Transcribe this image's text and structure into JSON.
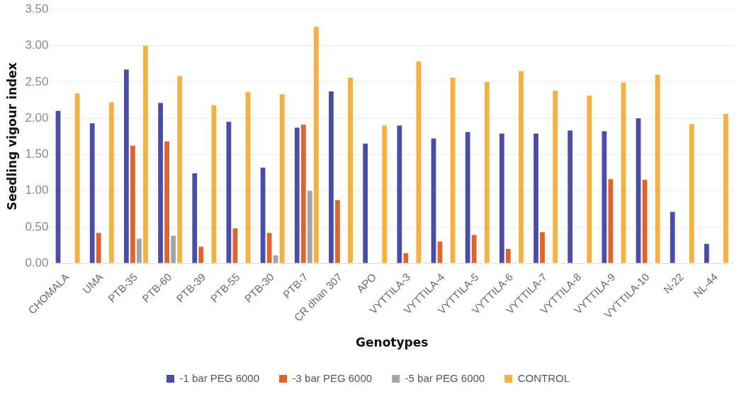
{
  "chart_data": {
    "type": "bar",
    "xlabel": "Genotypes",
    "ylabel": "Seedling vigour index",
    "categories": [
      "CHOMALA",
      "UMA",
      "PTB-35",
      "PTB-60",
      "PTB-39",
      "PTB-55",
      "PTB-30",
      "PTB-7",
      "CR dhan 307",
      "APO",
      "VYTTILA-3",
      "VYTTILA-4",
      "VYTTILA-5",
      "VYTTILA-6",
      "VYTTILA-7",
      "VYTTILA-8",
      "VYTTILA-9",
      "VYTTILA-10",
      "N-22",
      "NL-44"
    ],
    "series": [
      {
        "name": "-1 bar PEG 6000",
        "color": "#4a4ea8",
        "values": [
          2.1,
          1.93,
          2.67,
          2.21,
          1.24,
          1.95,
          1.32,
          1.87,
          2.37,
          1.65,
          1.9,
          1.72,
          1.81,
          1.79,
          1.79,
          1.83,
          1.82,
          2.0,
          0.71,
          0.27
        ]
      },
      {
        "name": "-3 bar PEG 6000",
        "color": "#e0632a",
        "values": [
          0,
          0.42,
          1.62,
          1.68,
          0.23,
          0.48,
          0.42,
          1.91,
          0.87,
          0,
          0.14,
          0.3,
          0.39,
          0.2,
          0.43,
          0,
          1.16,
          1.15,
          0,
          0
        ]
      },
      {
        "name": "-5 bar PEG 6000",
        "color": "#a5a5a5",
        "values": [
          0,
          0,
          0.34,
          0.38,
          0,
          0,
          0.11,
          1.0,
          0,
          0,
          0,
          0,
          0,
          0,
          0,
          0,
          0,
          0,
          0,
          0
        ]
      },
      {
        "name": "CONTROL",
        "color": "#f5b041",
        "values": [
          2.34,
          2.22,
          3.0,
          2.58,
          2.18,
          2.36,
          2.33,
          3.26,
          2.56,
          1.9,
          2.78,
          2.56,
          2.5,
          2.65,
          2.38,
          2.31,
          2.49,
          2.6,
          1.92,
          2.06
        ]
      }
    ],
    "ylim": [
      0,
      3.5
    ],
    "yticks": [
      {
        "value": 0,
        "label": "0.00"
      },
      {
        "value": 0.5,
        "label": "0.50"
      },
      {
        "value": 1,
        "label": "1.00"
      },
      {
        "value": 1.5,
        "label": "1.50"
      },
      {
        "value": 2,
        "label": "2.00"
      },
      {
        "value": 2.5,
        "label": "2.50"
      },
      {
        "value": 3,
        "label": "3.00"
      },
      {
        "value": 3.5,
        "label": "3.50"
      }
    ],
    "grid": "y",
    "legend": "bottom"
  }
}
